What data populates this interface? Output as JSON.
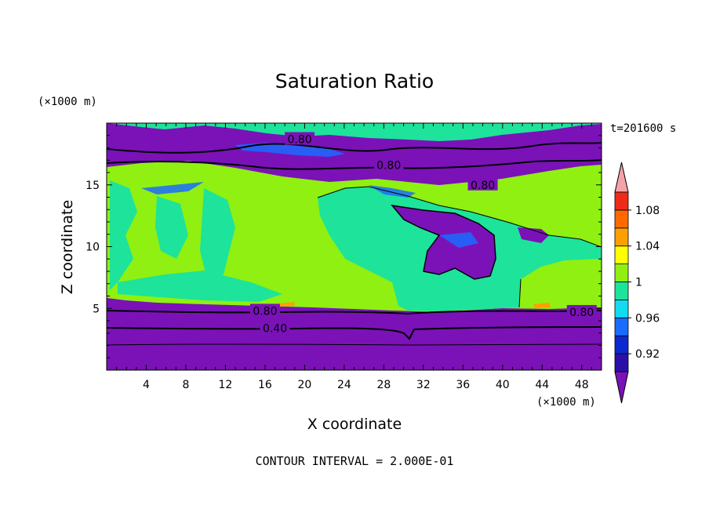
{
  "chart_data": {
    "type": "heatmap",
    "title": "Saturation Ratio",
    "xlabel": "X coordinate",
    "ylabel": "Z coordinate",
    "x_unit": "(×1000 m)",
    "y_unit": "(×1000 m)",
    "time_label": "t=201600 s",
    "footer": "CONTOUR INTERVAL = 2.000E-01",
    "xlim": [
      0,
      50
    ],
    "ylim": [
      0,
      20
    ],
    "x_ticks": [
      4,
      8,
      12,
      16,
      20,
      24,
      28,
      32,
      36,
      40,
      44,
      48
    ],
    "y_ticks": [
      5,
      10,
      15
    ],
    "colorbar": {
      "bins": [
        {
          "upper": 0.9,
          "color": "#7a12b8"
        },
        {
          "upper": 0.92,
          "color": "#2a10a8"
        },
        {
          "upper": 0.94,
          "color": "#0a2ad0"
        },
        {
          "upper": 0.96,
          "color": "#1a6cff"
        },
        {
          "upper": 0.98,
          "color": "#10dcf0"
        },
        {
          "upper": 1.0,
          "color": "#1ee39a"
        },
        {
          "upper": 1.02,
          "color": "#8ff011"
        },
        {
          "upper": 1.04,
          "color": "#ffff00"
        },
        {
          "upper": 1.06,
          "color": "#ffa000"
        },
        {
          "upper": 1.08,
          "color": "#ff6a00"
        },
        {
          "upper": 1.1,
          "color": "#f02a18"
        },
        {
          "upper": 1.12,
          "color": "#f4a4a8"
        }
      ],
      "tick_labels": [
        "0.92",
        "0.96",
        "1",
        "1.04",
        "1.08"
      ]
    },
    "contour_labels": [
      {
        "text": "0.80",
        "x": 19.5,
        "z": 18.7
      },
      {
        "text": "0.80",
        "x": 28.5,
        "z": 16.6
      },
      {
        "text": "0.80",
        "x": 38.0,
        "z": 15.0
      },
      {
        "text": "0.80",
        "x": 16.0,
        "z": 4.8
      },
      {
        "text": "0.40",
        "x": 17.0,
        "z": 3.4
      },
      {
        "text": "0.80",
        "x": 48.0,
        "z": 4.7
      }
    ]
  }
}
